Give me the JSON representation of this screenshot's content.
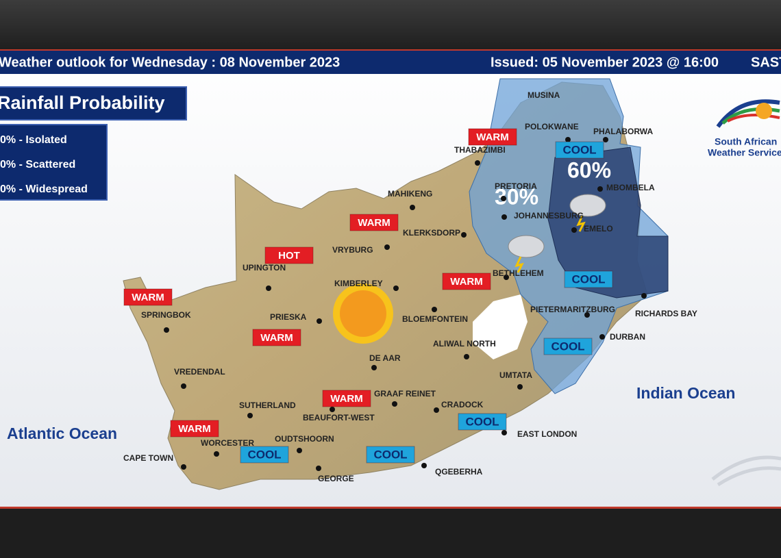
{
  "header": {
    "outlook": "Weather outlook for Wednesday : 08 November 2023",
    "issued": "Issued: 05 November 2023 @ 16:00",
    "timezone": "SAST"
  },
  "legend": {
    "title": "Rainfall Probability",
    "items": [
      "0% - Isolated",
      "0% - Scattered",
      "0% - Widespread"
    ]
  },
  "logo": {
    "line1": "South African",
    "line2": "Weather Service"
  },
  "oceans": [
    "Atlantic Ocean",
    "Indian Ocean"
  ],
  "rain_zones": [
    "30%",
    "60%"
  ],
  "cities": [
    "MUSINA",
    "POLOKWANE",
    "PHALABORWA",
    "THABAZIMBI",
    "MAHIKENG",
    "KLERKSDORP",
    "VRYBURG",
    "PRETORIA",
    "JOHANNESBURG",
    "MBOMBELA",
    "EMELO",
    "UPINGTON",
    "KIMBERLEY",
    "BETHLEHEM",
    "PRIESKA",
    "BLOEMFONTEIN",
    "SPRINGBOK",
    "PIETERMARITZBURG",
    "RICHARDS BAY",
    "DURBAN",
    "ALIWAL NORTH",
    "DE AAR",
    "UMTATA",
    "VREDENDAL",
    "GRAAF REINET",
    "SUTHERLAND",
    "CRADOCK",
    "BEAUFORT-WEST",
    "EAST LONDON",
    "WORCESTER",
    "OUDTSHOORN",
    "CAPE TOWN",
    "GEORGE",
    "QGEBERHA"
  ],
  "tags": [
    {
      "text": "WARM",
      "color": "#e31e24"
    },
    {
      "text": "COOL",
      "color": "#1fa4dc"
    },
    {
      "text": "WARM",
      "color": "#e31e24"
    },
    {
      "text": "HOT",
      "color": "#e31e24"
    },
    {
      "text": "WARM",
      "color": "#e31e24"
    },
    {
      "text": "WARM",
      "color": "#e31e24"
    },
    {
      "text": "WARM",
      "color": "#e31e24"
    },
    {
      "text": "COOL",
      "color": "#1fa4dc"
    },
    {
      "text": "COOL",
      "color": "#1fa4dc"
    },
    {
      "text": "WARM",
      "color": "#e31e24"
    },
    {
      "text": "COOL",
      "color": "#1fa4dc"
    },
    {
      "text": "WARM",
      "color": "#e31e24"
    },
    {
      "text": "COOL",
      "color": "#1fa4dc"
    },
    {
      "text": "COOL",
      "color": "#1fa4dc"
    }
  ]
}
